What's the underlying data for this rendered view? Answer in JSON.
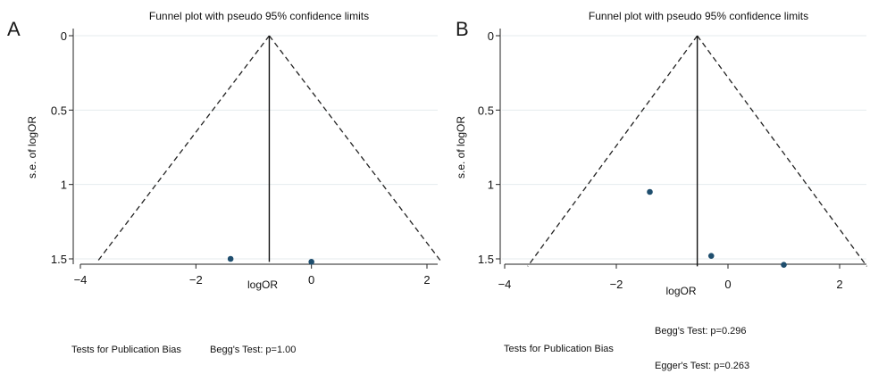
{
  "chart_data": [
    {
      "panel": "A",
      "type": "scatter",
      "title": "Funnel plot with pseudo 95% confidence limits",
      "xlabel": "logOR",
      "ylabel": "s.e. of logOR",
      "xlim": [
        -4,
        2.3
      ],
      "ylim": [
        1.5,
        0
      ],
      "xticks": [
        {
          "v": -4,
          "t": "−4"
        },
        {
          "v": -2,
          "t": "−2"
        },
        {
          "v": 0,
          "t": "0"
        },
        {
          "v": 2,
          "t": "2"
        }
      ],
      "yticks": [
        {
          "v": 0,
          "t": "0"
        },
        {
          "v": 0.5,
          "t": "0.5"
        },
        {
          "v": 1,
          "t": "1"
        },
        {
          "v": 1.5,
          "t": "1.5"
        }
      ],
      "pooled_logOR": -0.73,
      "funnel_max_se": 1.52,
      "points": [
        {
          "x": -1.4,
          "y": 1.5
        },
        {
          "x": 0.0,
          "y": 1.52
        }
      ],
      "notes": [
        {
          "text": "Tests for Publication Bias",
          "pos": "left-mid"
        },
        {
          "text": "Begg's Test: p=1.00",
          "pos": "right-mid"
        }
      ]
    },
    {
      "panel": "B",
      "type": "scatter",
      "title": "Funnel plot with pseudo 95% confidence limits",
      "xlabel": "logOR",
      "ylabel": "s.e. of logOR",
      "xlim": [
        -4,
        2.5
      ],
      "ylim": [
        1.5,
        0
      ],
      "xticks": [
        {
          "v": -4,
          "t": "−4"
        },
        {
          "v": -2,
          "t": "−2"
        },
        {
          "v": 0,
          "t": "0"
        },
        {
          "v": 2,
          "t": "2"
        }
      ],
      "yticks": [
        {
          "v": 0,
          "t": "0"
        },
        {
          "v": 0.5,
          "t": "0.5"
        },
        {
          "v": 1,
          "t": "1"
        },
        {
          "v": 1.5,
          "t": "1.5"
        }
      ],
      "pooled_logOR": -0.55,
      "funnel_max_se": 1.55,
      "points": [
        {
          "x": -1.4,
          "y": 1.05
        },
        {
          "x": -0.3,
          "y": 1.48
        },
        {
          "x": 1.0,
          "y": 1.54
        }
      ],
      "notes": [
        {
          "text": "Begg's Test: p=0.296",
          "pos": "right-top"
        },
        {
          "text": "Tests for Publication Bias",
          "pos": "left-mid"
        },
        {
          "text": "Egger's Test: p=0.263",
          "pos": "right-bottom"
        }
      ]
    }
  ]
}
